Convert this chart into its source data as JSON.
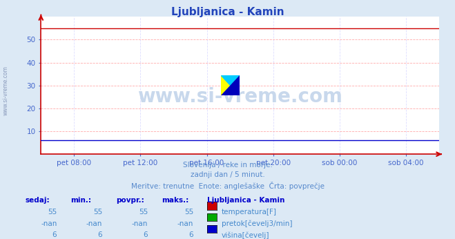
{
  "title": "Ljubljanica - Kamin",
  "title_color": "#2244bb",
  "background_color": "#dce9f5",
  "plot_background": "#ffffff",
  "grid_color_h": "#ffaaaa",
  "grid_color_v": "#ddddff",
  "xlabel_color": "#4466cc",
  "ylabel_color": "#4466cc",
  "watermark": "www.si-vreme.com",
  "watermark_color": "#c8d8ec",
  "x_tick_labels": [
    "pet 08:00",
    "pet 12:00",
    "pet 16:00",
    "pet 20:00",
    "sob 00:00",
    "sob 04:00"
  ],
  "ylim": [
    0,
    60
  ],
  "yticks": [
    10,
    20,
    30,
    40,
    50
  ],
  "temp_value": 55,
  "visina_value": 6,
  "subtitle_lines": [
    "Slovenija / reke in morje.",
    "zadnji dan / 5 minut.",
    "Meritve: trenutne  Enote: anglešaške  Črta: povprečje"
  ],
  "table_header": [
    "sedaj:",
    "min.:",
    "povpr.:",
    "maks.:",
    "Ljubljanica - Kamin"
  ],
  "table_rows": [
    [
      "55",
      "55",
      "55",
      "55",
      "temperatura[F]",
      "#cc0000"
    ],
    [
      "-nan",
      "-nan",
      "-nan",
      "-nan",
      "pretok[čevelj3/min]",
      "#00aa00"
    ],
    [
      "6",
      "6",
      "6",
      "6",
      "višina[čevelj]",
      "#0000cc"
    ]
  ],
  "left_label": "www.si-vreme.com",
  "left_label_color": "#8899bb",
  "subtitle_color": "#5588cc",
  "table_color": "#4488cc",
  "table_header_color": "#0000cc",
  "logo_colors": [
    "#ffff00",
    "#00ccff",
    "#0000bb"
  ],
  "line_red": "#cc0000",
  "line_blue": "#0000cc",
  "spine_color": "#cc0000",
  "arrow_color": "#cc0000"
}
